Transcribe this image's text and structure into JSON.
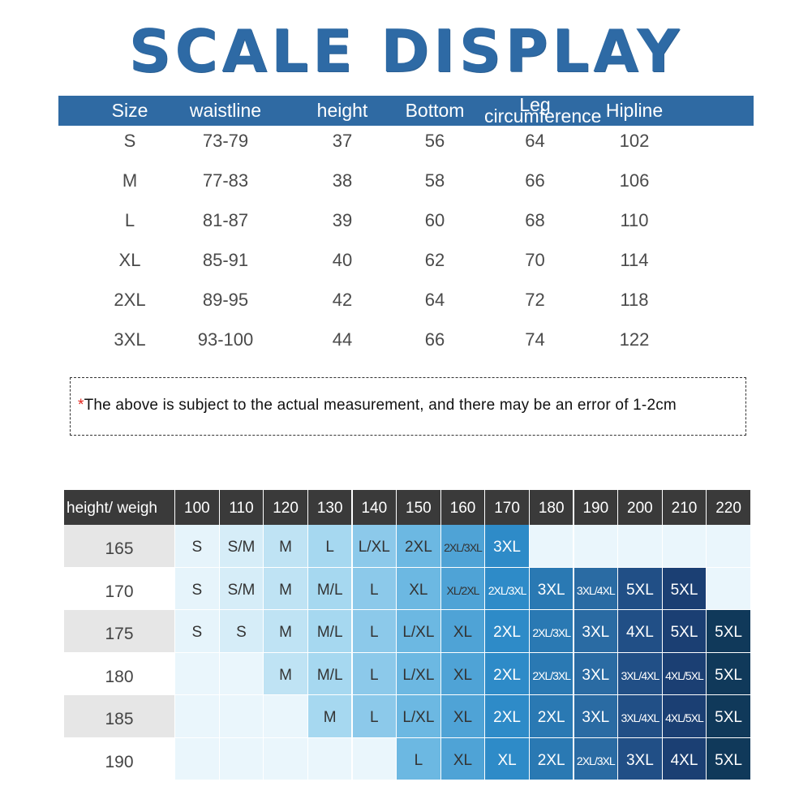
{
  "title": "SCALE DISPLAY",
  "size_table": {
    "headers": [
      "Size",
      "waistline",
      "height",
      "Bottom",
      "Leg circumference",
      "Hipline"
    ],
    "leg_header_lines": [
      "Leg",
      "circumference"
    ],
    "rows": [
      [
        "S",
        "73-79",
        "37",
        "56",
        "64",
        "102"
      ],
      [
        "M",
        "77-83",
        "38",
        "58",
        "66",
        "106"
      ],
      [
        "L",
        "81-87",
        "39",
        "60",
        "68",
        "110"
      ],
      [
        "XL",
        "85-91",
        "40",
        "62",
        "70",
        "114"
      ],
      [
        "2XL",
        "89-95",
        "42",
        "64",
        "72",
        "118"
      ],
      [
        "3XL",
        "93-100",
        "44",
        "66",
        "74",
        "122"
      ]
    ]
  },
  "note": {
    "star": "*",
    "text": "The above is subject to the actual measurement, and there may be an error of 1-2cm"
  },
  "grid": {
    "corner": "height/ weigh",
    "weights": [
      "100",
      "110",
      "120",
      "130",
      "140",
      "150",
      "160",
      "170",
      "180",
      "190",
      "200",
      "210",
      "220"
    ],
    "heights": [
      "165",
      "170",
      "175",
      "180",
      "185",
      "190"
    ],
    "cells": [
      [
        "S",
        "S/M",
        "M",
        "L",
        "L/XL",
        "2XL",
        "2XL/3XL",
        "3XL",
        "",
        "",
        "",
        "",
        ""
      ],
      [
        "S",
        "S/M",
        "M",
        "M/L",
        "L",
        "XL",
        "XL/2XL",
        "2XL/3XL",
        "3XL",
        "3XL/4XL",
        "5XL",
        "5XL",
        ""
      ],
      [
        "S",
        "S",
        "M",
        "M/L",
        "L",
        "L/XL",
        "XL",
        "2XL",
        "2XL/3XL",
        "3XL",
        "4XL",
        "5XL",
        "5XL"
      ],
      [
        "",
        "",
        "M",
        "M/L",
        "L",
        "L/XL",
        "XL",
        "2XL",
        "2XL/3XL",
        "3XL",
        "3XL/4XL",
        "4XL/5XL",
        "5XL"
      ],
      [
        "",
        "",
        "",
        "M",
        "L",
        "L/XL",
        "XL",
        "2XL",
        "2XL",
        "3XL",
        "3XL/4XL",
        "4XL/5XL",
        "5XL"
      ],
      [
        "",
        "",
        "",
        "",
        "",
        "L",
        "XL",
        "XL",
        "2XL",
        "2XL/3XL",
        "3XL",
        "4XL",
        "5XL"
      ]
    ],
    "colors": {
      "header_bg": "#3a3a3a",
      "row_label_gray": "#e6e6e6",
      "row_label_white": "#ffffff",
      "palette": [
        "#e6f4fb",
        "#d6edf8",
        "#bfe3f4",
        "#a6d8f0",
        "#8cc9ea",
        "#6cb8e2",
        "#4fa3d6",
        "#2e8bc8",
        "#2a79b3",
        "#2a6ba3",
        "#214f86",
        "#1b3f73",
        "#10395a"
      ]
    }
  }
}
